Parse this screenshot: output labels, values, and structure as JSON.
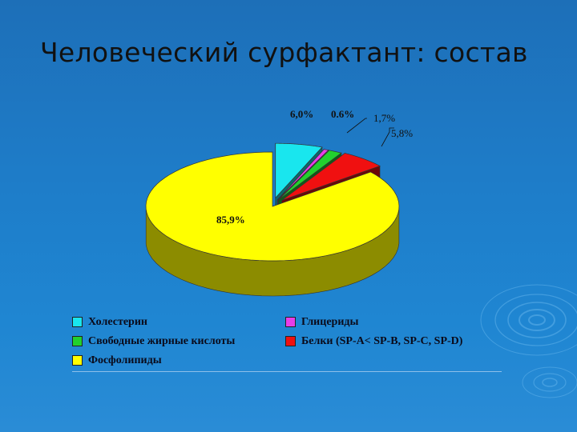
{
  "slide": {
    "title": "Человеческий сурфактант: состав"
  },
  "chart_data": {
    "type": "pie",
    "style": "3d-exploded",
    "slices": [
      {
        "name": "Холестерин",
        "value": 6.0,
        "label": "6,0%",
        "color": "#19e6ee"
      },
      {
        "name": "Глицериды",
        "value": 0.6,
        "label": "0.6%",
        "color": "#e83ee8"
      },
      {
        "name": "Свободные жирные кислоты",
        "value": 1.7,
        "label": "1,7%",
        "color": "#22d12e"
      },
      {
        "name": "Белки (SP-A< SP-B, SP-C, SP-D)",
        "value": 5.8,
        "label": "5,8%",
        "color": "#f01010"
      },
      {
        "name": "Фосфолипиды",
        "value": 85.9,
        "label": "85,9%",
        "color": "#ffff00"
      }
    ],
    "legend_position": "bottom"
  }
}
